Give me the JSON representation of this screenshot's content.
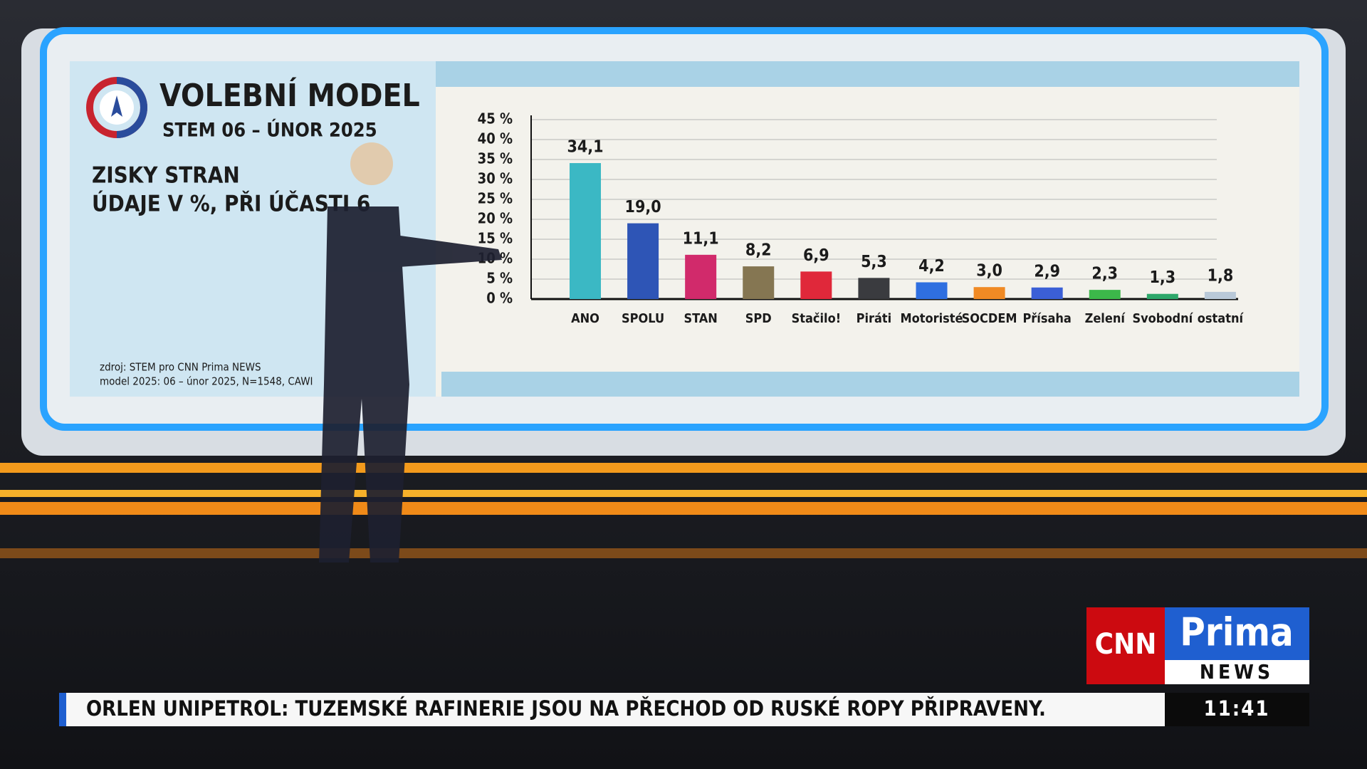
{
  "header": {
    "title": "VOLEBNÍ MODEL",
    "subtitle": "STEM 06 – ÚNOR 2025",
    "heading": "ZISKY STRAN",
    "note": "ÚDAJE V %, PŘI ÚČASTI 6",
    "source": "zdroj: STEM pro CNN Prima NEWS",
    "method": "model 2025: 06 – únor 2025, N=1548, CAWI"
  },
  "chart_data": {
    "type": "bar",
    "categories": [
      "ANO",
      "SPOLU",
      "STAN",
      "SPD",
      "Stačilo!",
      "Piráti",
      "Motoristé",
      "SOCDEM",
      "Přísaha",
      "Zelení",
      "Svobodní",
      "ostatní"
    ],
    "values": [
      34.1,
      19.0,
      11.1,
      8.2,
      6.9,
      5.3,
      4.2,
      3.0,
      2.9,
      2.3,
      1.3,
      1.8
    ],
    "value_labels": [
      "34,1",
      "19,0",
      "11,1",
      "8,2",
      "6,9",
      "5,3",
      "4,2",
      "3,0",
      "2,9",
      "2,3",
      "1,3",
      "1,8"
    ],
    "colors": [
      "#3bb8c4",
      "#2e55b6",
      "#d12a6b",
      "#857652",
      "#e0283a",
      "#3a3b3f",
      "#2f6fe0",
      "#f08a24",
      "#3b5fd6",
      "#3cb84a",
      "#2ea86a",
      "#b9c9d8"
    ],
    "ylim": [
      0,
      45
    ],
    "yticks": [
      {
        "value": 0,
        "label": "0 %"
      },
      {
        "value": 5,
        "label": "5 %"
      },
      {
        "value": 10,
        "label": "10 %"
      },
      {
        "value": 15,
        "label": "15 %"
      },
      {
        "value": 20,
        "label": "20 %"
      },
      {
        "value": 25,
        "label": "25 %"
      },
      {
        "value": 30,
        "label": "30 %"
      },
      {
        "value": 35,
        "label": "35 %"
      },
      {
        "value": 40,
        "label": "40 %"
      },
      {
        "value": 45,
        "label": "45 %"
      }
    ],
    "grid": true
  },
  "ticker": {
    "headline": "ORLEN UNIPETROL: TUZEMSKÉ RAFINERIE JSOU NA PŘECHOD OD RUSKÉ ROPY PŘIPRAVENY.",
    "time": "11:41"
  },
  "logo": {
    "cnn": "CNN",
    "prima": "Prima",
    "news": "NEWS"
  }
}
